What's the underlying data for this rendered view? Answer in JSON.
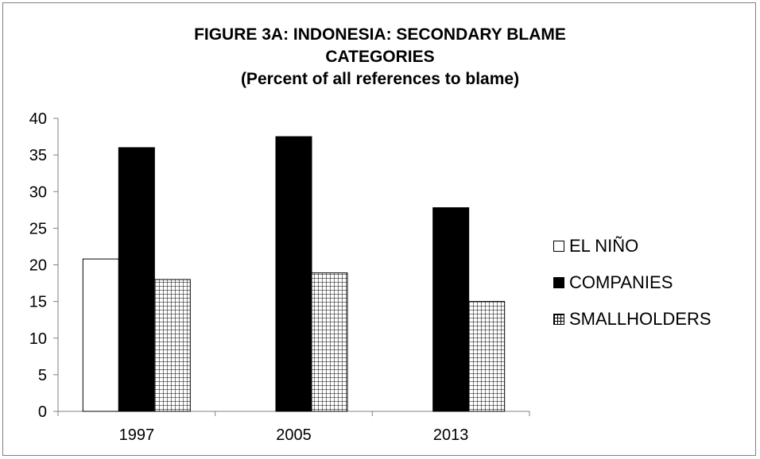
{
  "chart_data": {
    "type": "bar",
    "title_lines": [
      "FIGURE 3A: INDONESIA:  SECONDARY  BLAME",
      "CATEGORIES",
      "(Percent of all references to blame)"
    ],
    "categories": [
      "1997",
      "2005",
      "2013"
    ],
    "series": [
      {
        "name": "EL NIÑO",
        "values": [
          20.8,
          0,
          0
        ],
        "style": "white",
        "color": "#ffffff"
      },
      {
        "name": "COMPANIES",
        "values": [
          36.0,
          37.5,
          27.8
        ],
        "style": "black",
        "color": "#000000"
      },
      {
        "name": "SMALLHOLDERS",
        "values": [
          18.0,
          18.9,
          15.0
        ],
        "style": "grid",
        "color": "#000000"
      }
    ],
    "ylim": [
      0,
      40
    ],
    "yticks": [
      0,
      5,
      10,
      15,
      20,
      25,
      30,
      35,
      40
    ],
    "legend_position": "right",
    "grid": false
  }
}
